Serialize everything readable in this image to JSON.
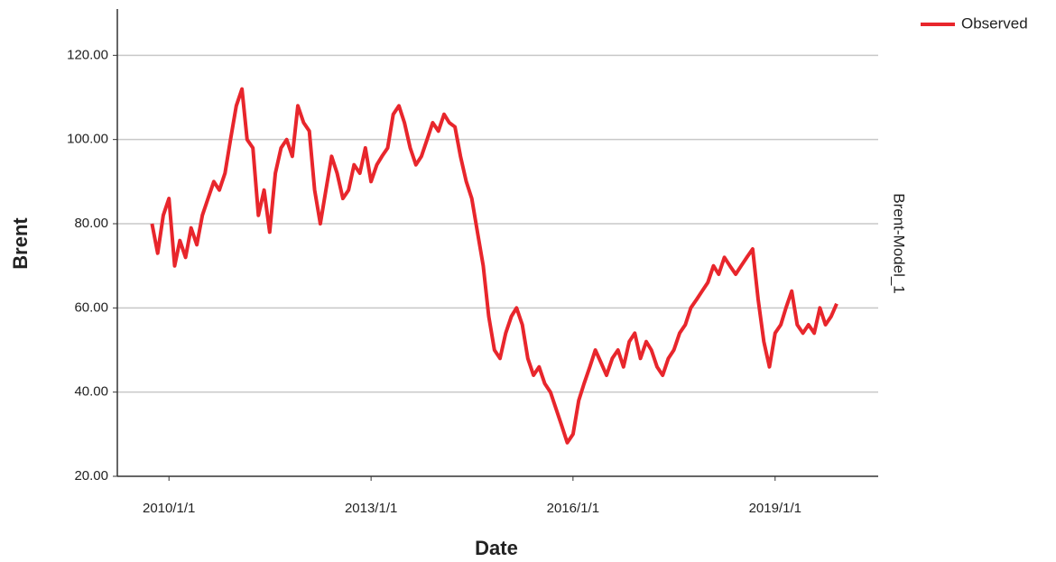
{
  "chart_data": {
    "type": "line",
    "x_label": "Date",
    "y_label": "Brent",
    "panel_label": "Brent-Model_1",
    "x": [
      "2009/10/1",
      "2009/11/1",
      "2009/12/1",
      "2010/1/1",
      "2010/2/1",
      "2010/3/1",
      "2010/4/1",
      "2010/5/1",
      "2010/6/1",
      "2010/7/1",
      "2010/8/1",
      "2010/9/1",
      "2010/10/1",
      "2010/11/1",
      "2010/12/1",
      "2011/1/1",
      "2011/2/1",
      "2011/3/1",
      "2011/4/1",
      "2011/5/1",
      "2011/6/1",
      "2011/7/1",
      "2011/8/1",
      "2011/9/1",
      "2011/10/1",
      "2011/11/1",
      "2011/12/1",
      "2012/1/1",
      "2012/2/1",
      "2012/3/1",
      "2012/4/1",
      "2012/5/1",
      "2012/6/1",
      "2012/7/1",
      "2012/8/1",
      "2012/9/1",
      "2012/10/1",
      "2012/11/1",
      "2012/12/1",
      "2013/1/1",
      "2013/2/1",
      "2013/3/1",
      "2013/4/1",
      "2013/5/1",
      "2013/6/1",
      "2013/7/1",
      "2013/8/1",
      "2013/9/1",
      "2013/10/1",
      "2013/11/1",
      "2013/12/1",
      "2014/1/1",
      "2014/2/1",
      "2014/3/1",
      "2014/4/1",
      "2014/5/1",
      "2014/6/1",
      "2014/7/1",
      "2014/8/1",
      "2014/9/1",
      "2014/10/1",
      "2014/11/1",
      "2014/12/1",
      "2015/1/1",
      "2015/2/1",
      "2015/3/1",
      "2015/4/1",
      "2015/5/1",
      "2015/6/1",
      "2015/7/1",
      "2015/8/1",
      "2015/9/1",
      "2015/10/1",
      "2015/11/1",
      "2015/12/1",
      "2016/1/1",
      "2016/2/1",
      "2016/3/1",
      "2016/4/1",
      "2016/5/1",
      "2016/6/1",
      "2016/7/1",
      "2016/8/1",
      "2016/9/1",
      "2016/10/1",
      "2016/11/1",
      "2016/12/1",
      "2017/1/1",
      "2017/2/1",
      "2017/3/1",
      "2017/4/1",
      "2017/5/1",
      "2017/6/1",
      "2017/7/1",
      "2017/8/1",
      "2017/9/1",
      "2017/10/1",
      "2017/11/1",
      "2017/12/1",
      "2018/1/1",
      "2018/2/1",
      "2018/3/1",
      "2018/4/1",
      "2018/5/1",
      "2018/6/1",
      "2018/7/1",
      "2018/8/1",
      "2018/9/1",
      "2018/10/1",
      "2018/11/1",
      "2018/12/1",
      "2019/1/1",
      "2019/2/1",
      "2019/3/1",
      "2019/4/1",
      "2019/5/1",
      "2019/6/1",
      "2019/7/1",
      "2019/8/1",
      "2019/9/1",
      "2019/10/1",
      "2019/11/1",
      "2019/12/1"
    ],
    "series": [
      {
        "name": "Observed",
        "color": "#e8262c",
        "values": [
          80,
          73,
          82,
          86,
          70,
          76,
          72,
          79,
          75,
          82,
          86,
          90,
          88,
          92,
          100,
          108,
          112,
          100,
          98,
          82,
          88,
          78,
          92,
          98,
          100,
          96,
          108,
          104,
          102,
          88,
          80,
          88,
          96,
          92,
          86,
          88,
          94,
          92,
          98,
          90,
          94,
          96,
          98,
          106,
          108,
          104,
          98,
          94,
          96,
          100,
          104,
          102,
          106,
          104,
          103,
          96,
          90,
          86,
          78,
          70,
          58,
          50,
          48,
          54,
          58,
          60,
          56,
          48,
          44,
          46,
          42,
          40,
          36,
          32,
          28,
          30,
          38,
          42,
          46,
          50,
          47,
          44,
          48,
          50,
          46,
          52,
          54,
          48,
          52,
          50,
          46,
          44,
          48,
          50,
          54,
          56,
          60,
          62,
          64,
          66,
          70,
          68,
          72,
          70,
          68,
          70,
          72,
          74,
          62,
          52,
          46,
          54,
          56,
          60,
          64,
          56,
          54,
          56,
          54,
          60,
          56,
          58,
          61
        ]
      }
    ],
    "xlim": [
      "2009/3/27",
      "2020/7/13"
    ],
    "xticks": [
      "2010/1/1",
      "2013/1/1",
      "2016/1/1",
      "2019/1/1"
    ],
    "ylim": [
      20,
      131
    ],
    "yticks": [
      {
        "value": 20,
        "label": "20.00"
      },
      {
        "value": 40,
        "label": "40.00"
      },
      {
        "value": 60,
        "label": "60.00"
      },
      {
        "value": 80,
        "label": "80.00"
      },
      {
        "value": 100,
        "label": "100.00"
      },
      {
        "value": 120,
        "label": "120.00"
      }
    ],
    "grid": true,
    "legend": "top-right"
  }
}
